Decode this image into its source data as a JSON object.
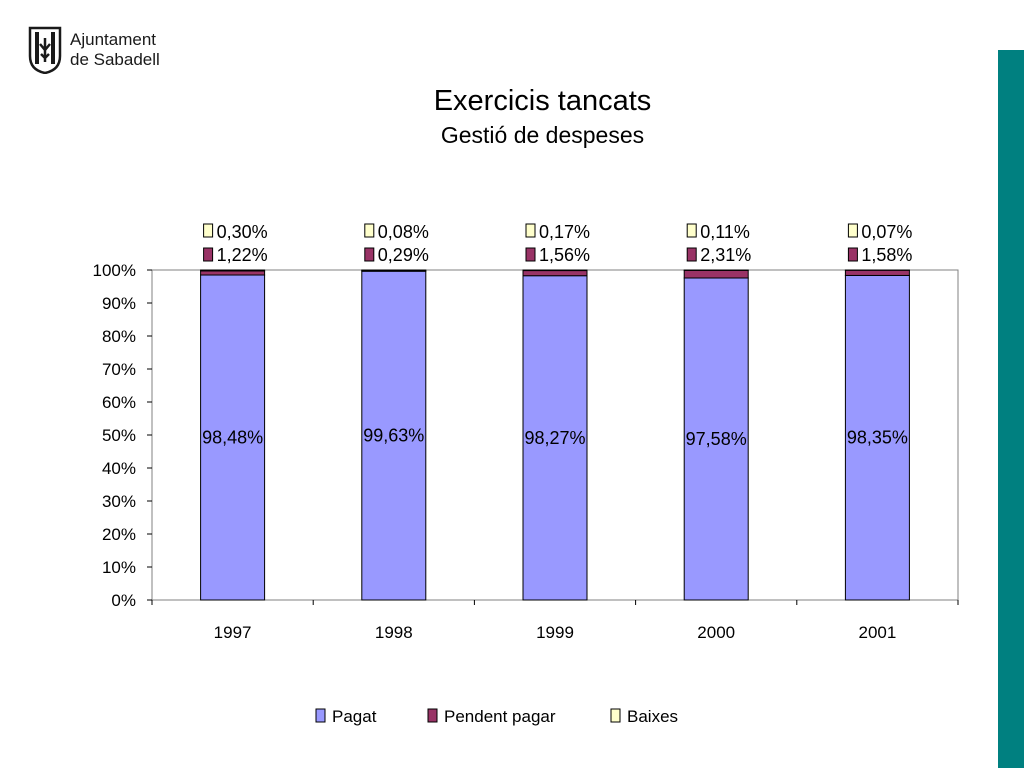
{
  "header": {
    "logo_line1": "Ajuntament",
    "logo_line2": "de Sabadell",
    "title": "Exercicis tancats",
    "subtitle": "Gestió de despeses"
  },
  "colors": {
    "pagat": "#9999ff",
    "pendent": "#993366",
    "baixes": "#ffffcc",
    "accent_bar": "#008080"
  },
  "chart_data": {
    "type": "bar",
    "stacked": true,
    "percent": true,
    "categories": [
      "1997",
      "1998",
      "1999",
      "2000",
      "2001"
    ],
    "series": [
      {
        "name": "Pagat",
        "values": [
          98.48,
          99.63,
          98.27,
          97.58,
          98.35
        ],
        "labels": [
          "98,48%",
          "99,63%",
          "98,27%",
          "97,58%",
          "98,35%"
        ]
      },
      {
        "name": "Pendent pagar",
        "values": [
          1.22,
          0.29,
          1.56,
          2.31,
          1.58
        ],
        "labels": [
          "1,22%",
          "0,29%",
          "1,56%",
          "2,31%",
          "1,58%"
        ]
      },
      {
        "name": "Baixes",
        "values": [
          0.3,
          0.08,
          0.17,
          0.11,
          0.07
        ],
        "labels": [
          "0,30%",
          "0,08%",
          "0,17%",
          "0,11%",
          "0,07%"
        ]
      }
    ],
    "ylim": [
      0,
      100
    ],
    "yticks": [
      "0%",
      "10%",
      "20%",
      "30%",
      "40%",
      "50%",
      "60%",
      "70%",
      "80%",
      "90%",
      "100%"
    ],
    "legend_position": "bottom",
    "grid": false
  }
}
